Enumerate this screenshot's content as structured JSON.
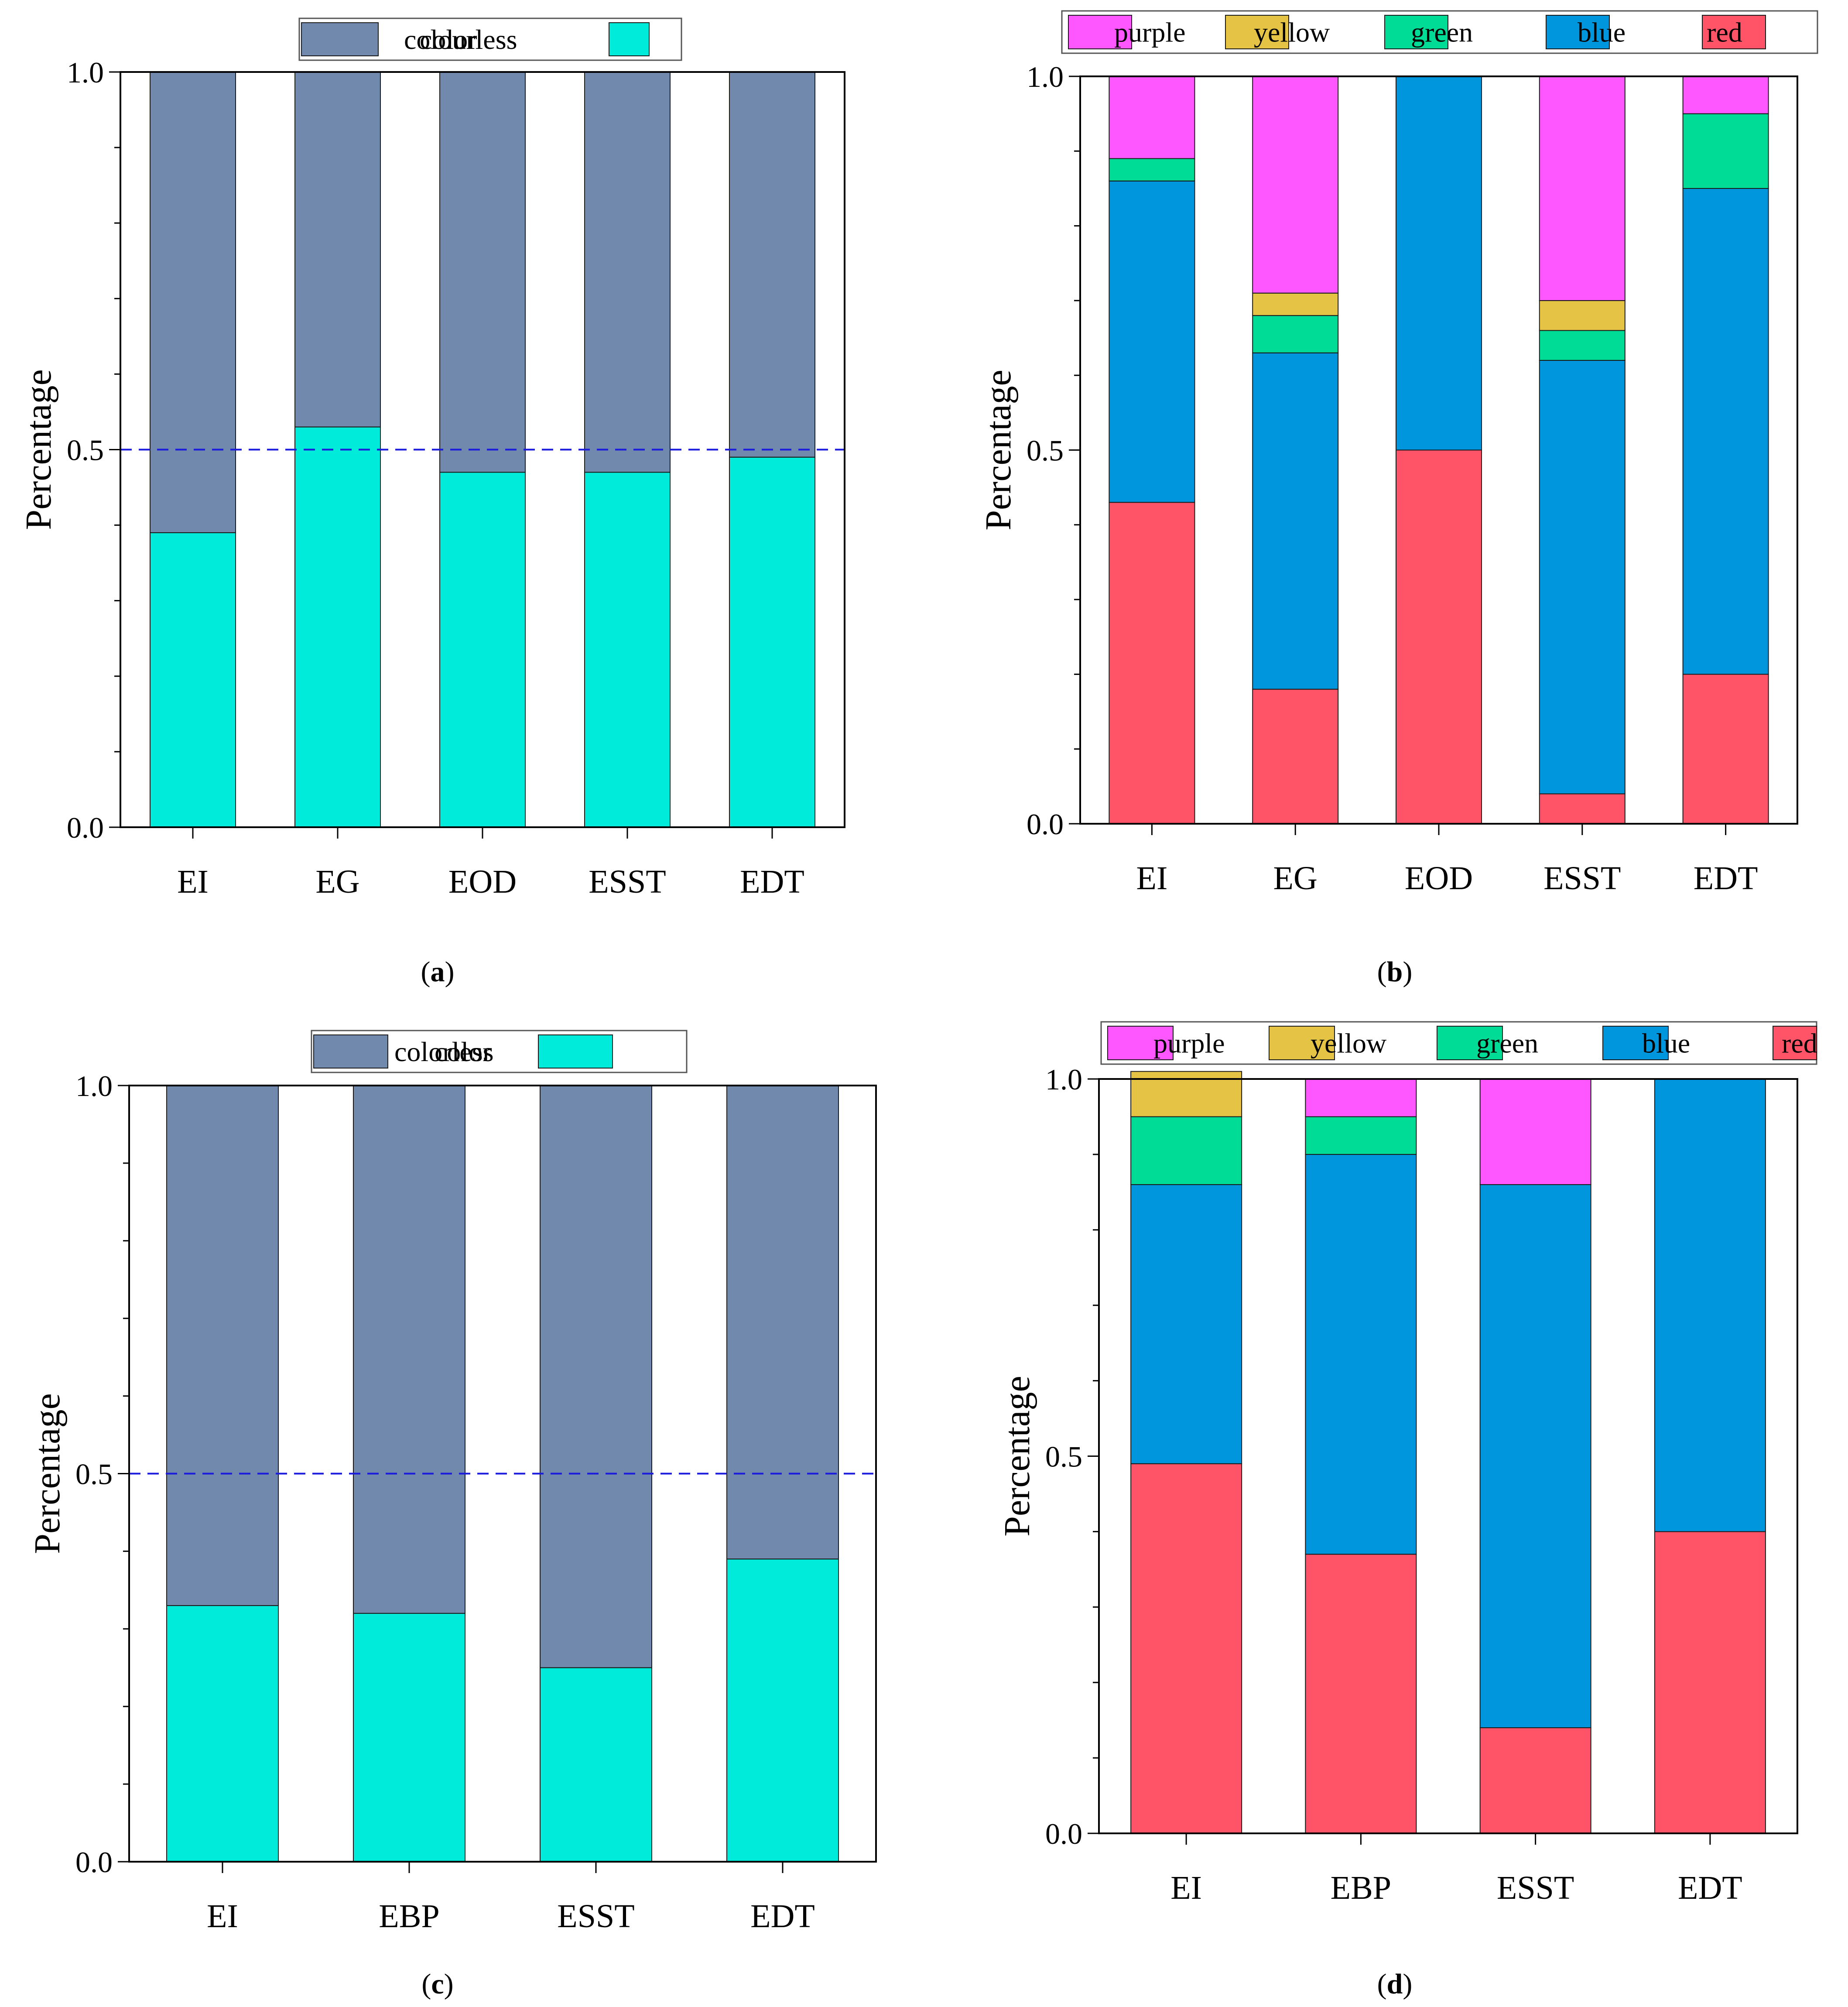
{
  "figure": {
    "panel_labels": [
      {
        "prefix": "(",
        "letter": "a",
        "suffix": ")"
      },
      {
        "prefix": "(",
        "letter": "b",
        "suffix": ")"
      },
      {
        "prefix": "(",
        "letter": "c",
        "suffix": ")"
      },
      {
        "prefix": "(",
        "letter": "d",
        "suffix": ")"
      }
    ]
  },
  "colors": {
    "colorless": "#7189ad",
    "color": "#00ebd9",
    "purple": "#ff57ff",
    "yellow": "#e5c445",
    "green": "#00db95",
    "blue": "#0096dd",
    "red": "#ff5468",
    "reference_line": "#1a1adc"
  },
  "chart_data": [
    {
      "id": "a",
      "type": "bar",
      "stacked": true,
      "categories": [
        "EI",
        "EG",
        "EOD",
        "ESST",
        "EDT"
      ],
      "series": [
        {
          "name": "color",
          "color_key": "color",
          "values": [
            0.39,
            0.53,
            0.47,
            0.47,
            0.49
          ]
        },
        {
          "name": "colourless",
          "color_key": "colorless",
          "values": [
            0.61,
            0.47,
            0.53,
            0.53,
            0.51
          ]
        }
      ],
      "legend": [
        "colourless",
        "color"
      ],
      "legend_order": [
        "colourless",
        "color"
      ],
      "ylabel": "Percentage",
      "ylim": [
        0,
        1
      ],
      "yticks": [
        "0.0",
        "0.5",
        "1.0"
      ],
      "reference_line": 0.5
    },
    {
      "id": "b",
      "type": "bar",
      "stacked": true,
      "categories": [
        "EI",
        "EG",
        "EOD",
        "ESST",
        "EDT"
      ],
      "series": [
        {
          "name": "red",
          "color_key": "red",
          "values": [
            0.43,
            0.18,
            0.5,
            0.04,
            0.2
          ]
        },
        {
          "name": "blue",
          "color_key": "blue",
          "values": [
            0.43,
            0.45,
            0.5,
            0.58,
            0.65
          ]
        },
        {
          "name": "green",
          "color_key": "green",
          "values": [
            0.03,
            0.05,
            0,
            0.04,
            0.1
          ]
        },
        {
          "name": "yellow",
          "color_key": "yellow",
          "values": [
            0,
            0.03,
            0,
            0.04,
            0
          ]
        },
        {
          "name": "purple",
          "color_key": "purple",
          "values": [
            0.11,
            0.29,
            0,
            0.3,
            0.05
          ]
        }
      ],
      "legend_order": [
        "purple",
        "yellow",
        "green",
        "blue",
        "red"
      ],
      "ylabel": "Percentage",
      "ylim": [
        0,
        1
      ],
      "yticks": [
        "0.0",
        "0.5",
        "1.0"
      ]
    },
    {
      "id": "c",
      "type": "bar",
      "stacked": true,
      "categories": [
        "EI",
        "EBP",
        "ESST",
        "EDT"
      ],
      "series": [
        {
          "name": "color",
          "color_key": "color",
          "values": [
            0.33,
            0.32,
            0.25,
            0.39
          ]
        },
        {
          "name": "colorless",
          "color_key": "colorless",
          "values": [
            0.67,
            0.68,
            0.75,
            0.61
          ]
        }
      ],
      "legend_order": [
        "colorless",
        "color"
      ],
      "ylabel": "Percentage",
      "ylim": [
        0,
        1
      ],
      "yticks": [
        "0.0",
        "0.5",
        "1.0"
      ],
      "reference_line": 0.5
    },
    {
      "id": "d",
      "type": "bar",
      "stacked": true,
      "categories": [
        "EI",
        "EBP",
        "ESST",
        "EDT"
      ],
      "series": [
        {
          "name": "red",
          "color_key": "red",
          "values": [
            0.49,
            0.37,
            0.14,
            0.4
          ]
        },
        {
          "name": "blue",
          "color_key": "blue",
          "values": [
            0.37,
            0.53,
            0.72,
            0.6
          ]
        },
        {
          "name": "green",
          "color_key": "green",
          "values": [
            0.09,
            0.05,
            0,
            0
          ]
        },
        {
          "name": "yellow",
          "color_key": "yellow",
          "values": [
            0.06,
            0,
            0,
            0
          ]
        },
        {
          "name": "purple",
          "color_key": "purple",
          "values": [
            0,
            0.05,
            0.14,
            0
          ]
        }
      ],
      "legend_order": [
        "purple",
        "yellow",
        "green",
        "blue",
        "red"
      ],
      "ylabel": "Percentage",
      "ylim": [
        0,
        1
      ],
      "yticks": [
        "0.0",
        "0.5",
        "1.0"
      ]
    }
  ]
}
